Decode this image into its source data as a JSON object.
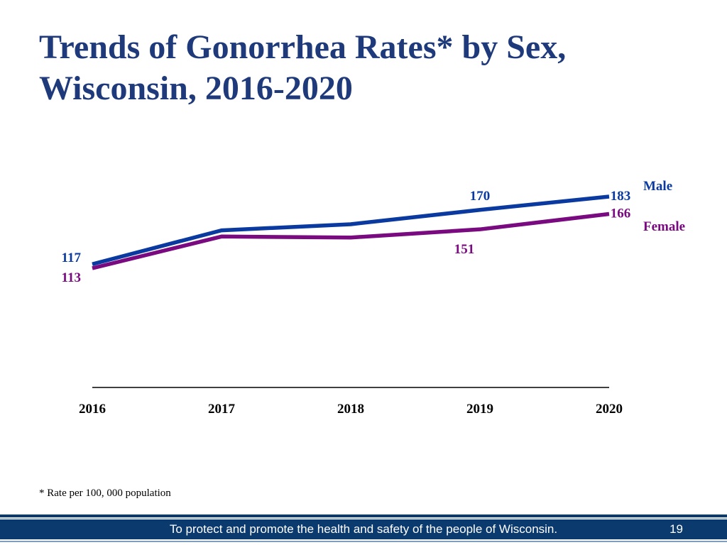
{
  "slide": {
    "title": "Trends of Gonorrhea Rates* by Sex, Wisconsin, 2016-2020",
    "footnote": "* Rate per 100, 000 population",
    "footer_text": "To protect and promote the health and safety of the people of Wisconsin.",
    "page_number": "19"
  },
  "colors": {
    "title": "#1f3a7a",
    "male": "#0a3aa0",
    "female": "#7a0a80",
    "footer_bar": "#0b3a6e"
  },
  "chart_data": {
    "type": "line",
    "title": "Trends of Gonorrhea Rates* by Sex, Wisconsin, 2016-2020",
    "categories": [
      "2016",
      "2017",
      "2018",
      "2019",
      "2020"
    ],
    "series": [
      {
        "name": "Male",
        "values": [
          117,
          150,
          156,
          170,
          183
        ],
        "labels": [
          "117",
          "",
          "",
          "170",
          "183"
        ]
      },
      {
        "name": "Female",
        "values": [
          113,
          144,
          143,
          151,
          166
        ],
        "labels": [
          "113",
          "",
          "",
          "151",
          "166"
        ]
      }
    ],
    "xlabel": "",
    "ylabel": "",
    "ylim": [
      0,
      200
    ],
    "grid": false,
    "legend": "right"
  }
}
